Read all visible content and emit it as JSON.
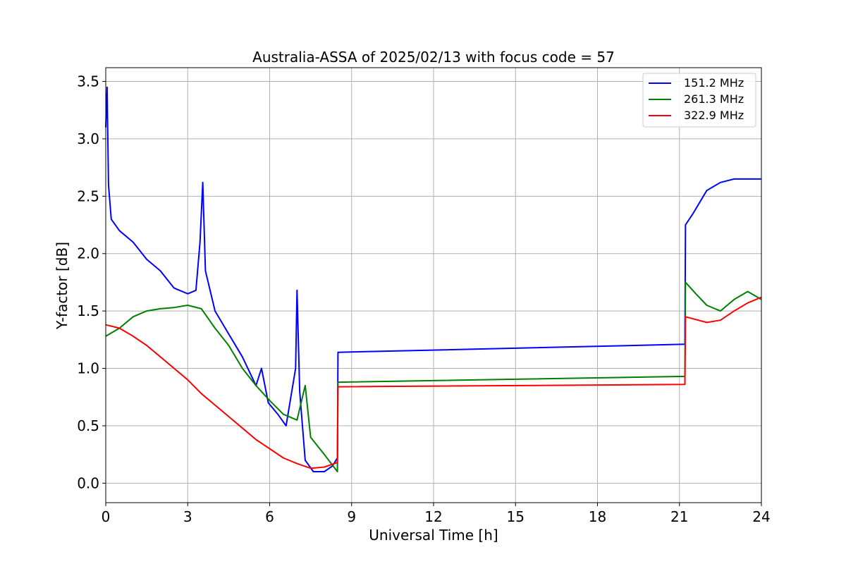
{
  "chart_data": {
    "type": "line",
    "title": "Australia-ASSA of 2025/02/13 with focus code = 57",
    "xlabel": "Universal Time [h]",
    "ylabel": "Y-factor [dB]",
    "xlim": [
      0,
      24
    ],
    "ylim": [
      -0.17,
      3.62
    ],
    "xticks": [
      0,
      3,
      6,
      9,
      12,
      15,
      18,
      21,
      24
    ],
    "yticks": [
      0.0,
      0.5,
      1.0,
      1.5,
      2.0,
      2.5,
      3.0,
      3.5
    ],
    "ytick_labels": [
      "0.0",
      "0.5",
      "1.0",
      "1.5",
      "2.0",
      "2.5",
      "3.0",
      "3.5"
    ],
    "grid": true,
    "legend_position": "top-right",
    "series": [
      {
        "name": "151.2 MHz",
        "color": "#0000ff",
        "points": [
          [
            0.0,
            3.1
          ],
          [
            0.05,
            3.45
          ],
          [
            0.1,
            2.6
          ],
          [
            0.2,
            2.3
          ],
          [
            0.5,
            2.2
          ],
          [
            1.0,
            2.1
          ],
          [
            1.5,
            1.95
          ],
          [
            2.0,
            1.85
          ],
          [
            2.5,
            1.7
          ],
          [
            3.0,
            1.65
          ],
          [
            3.3,
            1.68
          ],
          [
            3.45,
            2.1
          ],
          [
            3.55,
            2.62
          ],
          [
            3.65,
            1.85
          ],
          [
            4.0,
            1.5
          ],
          [
            4.5,
            1.3
          ],
          [
            5.0,
            1.1
          ],
          [
            5.5,
            0.85
          ],
          [
            5.7,
            1.0
          ],
          [
            5.95,
            0.7
          ],
          [
            6.3,
            0.6
          ],
          [
            6.6,
            0.5
          ],
          [
            6.95,
            1.0
          ],
          [
            7.0,
            1.68
          ],
          [
            7.1,
            0.8
          ],
          [
            7.3,
            0.2
          ],
          [
            7.6,
            0.1
          ],
          [
            8.0,
            0.1
          ],
          [
            8.3,
            0.15
          ],
          [
            8.48,
            0.22
          ],
          [
            8.5,
            1.14
          ],
          [
            21.2,
            1.21
          ],
          [
            21.22,
            2.25
          ],
          [
            21.5,
            2.35
          ],
          [
            22.0,
            2.55
          ],
          [
            22.5,
            2.62
          ],
          [
            23.0,
            2.65
          ],
          [
            23.5,
            2.65
          ],
          [
            24.0,
            2.65
          ]
        ]
      },
      {
        "name": "261.3 MHz",
        "color": "#008000",
        "points": [
          [
            0.0,
            1.28
          ],
          [
            0.5,
            1.35
          ],
          [
            1.0,
            1.45
          ],
          [
            1.5,
            1.5
          ],
          [
            2.0,
            1.52
          ],
          [
            2.5,
            1.53
          ],
          [
            3.0,
            1.55
          ],
          [
            3.5,
            1.52
          ],
          [
            4.0,
            1.35
          ],
          [
            4.5,
            1.2
          ],
          [
            5.0,
            1.0
          ],
          [
            5.5,
            0.85
          ],
          [
            6.0,
            0.72
          ],
          [
            6.5,
            0.6
          ],
          [
            7.0,
            0.55
          ],
          [
            7.3,
            0.85
          ],
          [
            7.5,
            0.4
          ],
          [
            8.0,
            0.25
          ],
          [
            8.48,
            0.1
          ],
          [
            8.5,
            0.88
          ],
          [
            21.2,
            0.93
          ],
          [
            21.22,
            1.75
          ],
          [
            21.6,
            1.65
          ],
          [
            22.0,
            1.55
          ],
          [
            22.5,
            1.5
          ],
          [
            23.0,
            1.6
          ],
          [
            23.5,
            1.67
          ],
          [
            24.0,
            1.6
          ]
        ]
      },
      {
        "name": "322.9 MHz",
        "color": "#ff0000",
        "points": [
          [
            0.0,
            1.38
          ],
          [
            0.5,
            1.35
          ],
          [
            1.0,
            1.28
          ],
          [
            1.5,
            1.2
          ],
          [
            2.0,
            1.1
          ],
          [
            2.5,
            1.0
          ],
          [
            3.0,
            0.9
          ],
          [
            3.5,
            0.78
          ],
          [
            4.0,
            0.68
          ],
          [
            4.5,
            0.58
          ],
          [
            5.0,
            0.48
          ],
          [
            5.5,
            0.38
          ],
          [
            6.0,
            0.3
          ],
          [
            6.5,
            0.22
          ],
          [
            7.0,
            0.17
          ],
          [
            7.5,
            0.13
          ],
          [
            8.0,
            0.14
          ],
          [
            8.48,
            0.18
          ],
          [
            8.5,
            0.84
          ],
          [
            21.2,
            0.86
          ],
          [
            21.22,
            1.45
          ],
          [
            22.0,
            1.4
          ],
          [
            22.5,
            1.42
          ],
          [
            23.0,
            1.5
          ],
          [
            23.5,
            1.57
          ],
          [
            24.0,
            1.62
          ]
        ]
      }
    ]
  }
}
